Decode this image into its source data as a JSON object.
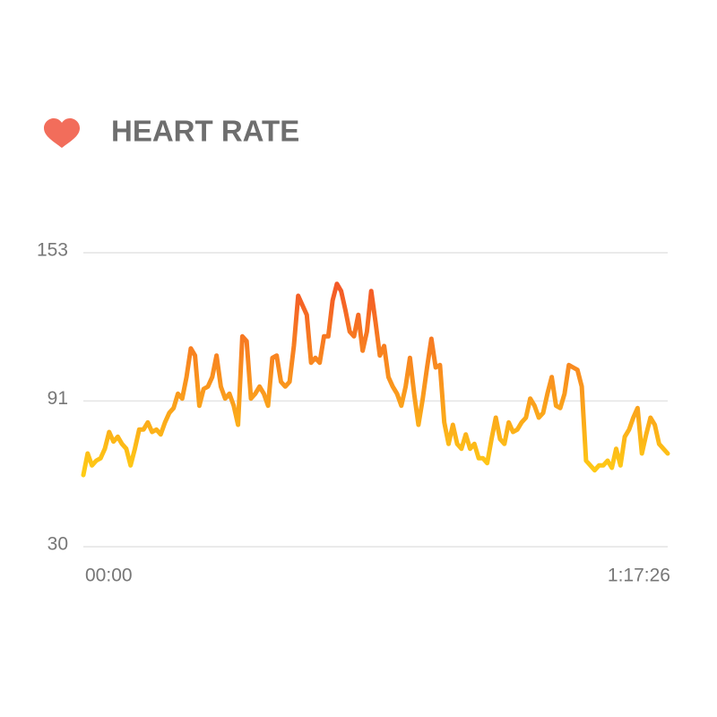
{
  "chart_data": {
    "type": "line",
    "title": "HEART RATE",
    "values": [
      60,
      69,
      64,
      66,
      67,
      71,
      78,
      74,
      76,
      73,
      71,
      64,
      71,
      79,
      79,
      82,
      78,
      79,
      77,
      82,
      86,
      88,
      94,
      92,
      101,
      113,
      110,
      89,
      96,
      97,
      101,
      110,
      97,
      92,
      94,
      89,
      81,
      118,
      116,
      92,
      94,
      97,
      94,
      89,
      109,
      110,
      99,
      97,
      99,
      114,
      135,
      131,
      127,
      107,
      109,
      107,
      118,
      118,
      133,
      140,
      137,
      129,
      120,
      118,
      127,
      112,
      120,
      137,
      124,
      110,
      114,
      101,
      97,
      94,
      89,
      97,
      109,
      94,
      81,
      92,
      105,
      117,
      105,
      106,
      82,
      73,
      81,
      73,
      71,
      77,
      71,
      73,
      67,
      67,
      65,
      75,
      84,
      75,
      73,
      82,
      78,
      79,
      82,
      84,
      92,
      89,
      84,
      86,
      94,
      101,
      89,
      88,
      94,
      106,
      105,
      104,
      97,
      66,
      64,
      62,
      64,
      64,
      66,
      63,
      71,
      64,
      76,
      79,
      84,
      88,
      69,
      77,
      84,
      81,
      73,
      71,
      69
    ],
    "xlim": [
      0,
      4646
    ],
    "xticks": [
      {
        "value": 0,
        "label": "00:00"
      },
      {
        "value": 4646,
        "label": "1:17:26"
      }
    ],
    "ylim": [
      30,
      153
    ],
    "yticks": [
      30,
      91,
      153
    ],
    "grid": true,
    "gradient": [
      "#ffd414",
      "#f2452a"
    ]
  }
}
